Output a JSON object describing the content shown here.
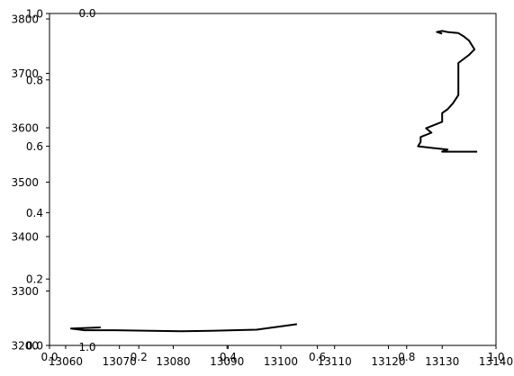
{
  "chart_data": {
    "type": "line",
    "title": "",
    "xlabel": "",
    "ylabel": "",
    "grid": false,
    "legend": "none",
    "primary_axes": {
      "xlim": [
        13057,
        13140
      ],
      "ylim": [
        3200,
        3810
      ],
      "x_ticks": [
        {
          "value": 13060,
          "label": "13060"
        },
        {
          "value": 13070,
          "label": "13070"
        },
        {
          "value": 13080,
          "label": "13080"
        },
        {
          "value": 13090,
          "label": "13090"
        },
        {
          "value": 13100,
          "label": "13100"
        },
        {
          "value": 13110,
          "label": "13110"
        },
        {
          "value": 13120,
          "label": "13120"
        },
        {
          "value": 13130,
          "label": "13130"
        },
        {
          "value": 13140,
          "label": "13140"
        }
      ],
      "y_ticks": [
        {
          "value": 3200,
          "label": "3200"
        },
        {
          "value": 3300,
          "label": "3300"
        },
        {
          "value": 3400,
          "label": "3400"
        },
        {
          "value": 3500,
          "label": "3500"
        },
        {
          "value": 3600,
          "label": "3600"
        },
        {
          "value": 3700,
          "label": "3700"
        },
        {
          "value": 3800,
          "label": "3800"
        }
      ]
    },
    "secondary_axes": {
      "xlim": [
        0,
        1
      ],
      "ylim": [
        0,
        1
      ],
      "x_ticks": [
        {
          "value": 0.0,
          "label": "0.0"
        },
        {
          "value": 0.2,
          "label": "0.2"
        },
        {
          "value": 0.4,
          "label": "0.4"
        },
        {
          "value": 0.6,
          "label": "0.6"
        },
        {
          "value": 0.8,
          "label": "0.8"
        },
        {
          "value": 1.0,
          "label": "1.0"
        }
      ],
      "y_ticks": [
        {
          "value": 0.0,
          "label": "0.0"
        },
        {
          "value": 0.2,
          "label": "0.2"
        },
        {
          "value": 0.4,
          "label": "0.4"
        },
        {
          "value": 0.6,
          "label": "0.6"
        },
        {
          "value": 0.8,
          "label": "0.8"
        },
        {
          "value": 1.0,
          "label": "1.0"
        }
      ]
    },
    "inset_axes": {
      "position": "top-left",
      "labels": [
        "0.0",
        "1.0"
      ]
    },
    "series": [
      {
        "color": "#000000",
        "points": [
          {
            "x": 13066.5,
            "y": 3233
          },
          {
            "x": 13061,
            "y": 3231
          },
          {
            "x": 13063.5,
            "y": 3228
          },
          {
            "x": 13069,
            "y": 3228
          },
          {
            "x": 13081.5,
            "y": 3226
          },
          {
            "x": 13087,
            "y": 3227
          },
          {
            "x": 13095.5,
            "y": 3229
          },
          {
            "x": 13103,
            "y": 3239
          }
        ]
      },
      {
        "color": "#000000",
        "points": [
          {
            "x": 13136.5,
            "y": 3556
          },
          {
            "x": 13130,
            "y": 3556
          },
          {
            "x": 13131,
            "y": 3560
          },
          {
            "x": 13128,
            "y": 3563
          },
          {
            "x": 13125.5,
            "y": 3566
          },
          {
            "x": 13126,
            "y": 3574
          },
          {
            "x": 13126,
            "y": 3583
          },
          {
            "x": 13128,
            "y": 3591
          },
          {
            "x": 13127,
            "y": 3599
          },
          {
            "x": 13128,
            "y": 3603
          },
          {
            "x": 13130,
            "y": 3611
          },
          {
            "x": 13130,
            "y": 3627
          },
          {
            "x": 13131,
            "y": 3634
          },
          {
            "x": 13132,
            "y": 3645
          },
          {
            "x": 13133,
            "y": 3660
          },
          {
            "x": 13133,
            "y": 3675
          },
          {
            "x": 13133,
            "y": 3690
          },
          {
            "x": 13133,
            "y": 3705
          },
          {
            "x": 13133,
            "y": 3719
          },
          {
            "x": 13135,
            "y": 3734
          },
          {
            "x": 13136,
            "y": 3744
          },
          {
            "x": 13135,
            "y": 3760
          },
          {
            "x": 13134,
            "y": 3768
          },
          {
            "x": 13133,
            "y": 3774
          },
          {
            "x": 13131,
            "y": 3776
          },
          {
            "x": 13130,
            "y": 3778
          },
          {
            "x": 13129,
            "y": 3776
          },
          {
            "x": 13130,
            "y": 3773
          }
        ]
      }
    ]
  }
}
